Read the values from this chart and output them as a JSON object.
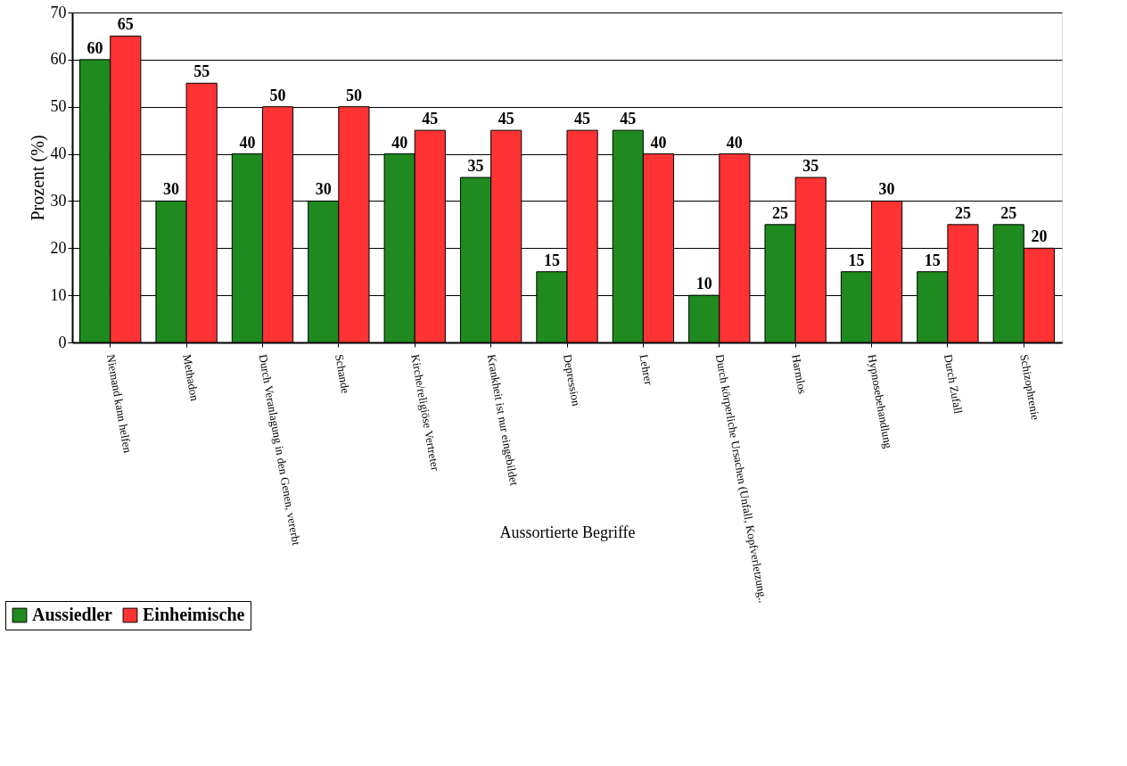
{
  "chart_data": {
    "type": "bar",
    "xlabel": "Aussortierte Begriffe",
    "ylabel": "Prozent (%)",
    "categories": [
      "Niemand kann helfen",
      "Methadon",
      "Durch Veranlagung in den Genen, vererbt",
      "Schande",
      "Kirche/religiöse Vertreter",
      "Krankheit ist nur eingebildet",
      "Depression",
      "Lehrer",
      "Durch körperliche Ursachen (Unfall, Kopfverletzung..",
      "Harmlos",
      "Hypnosebehandlung",
      "Durch Zufall",
      "Schizophrenie"
    ],
    "series": [
      {
        "name": "Aussiedler",
        "color": "#1f8a1f",
        "values": [
          60,
          30,
          40,
          30,
          40,
          35,
          15,
          45,
          10,
          25,
          15,
          15,
          25
        ]
      },
      {
        "name": "Einheimische",
        "color": "#ff3333",
        "values": [
          65,
          55,
          50,
          50,
          45,
          45,
          45,
          40,
          40,
          35,
          30,
          25,
          20
        ]
      }
    ],
    "ylim": [
      0,
      70
    ],
    "yticks": [
      0,
      10,
      20,
      30,
      40,
      50,
      60,
      70
    ],
    "grid": "y",
    "legend": "bottom left",
    "data_labels": true
  }
}
